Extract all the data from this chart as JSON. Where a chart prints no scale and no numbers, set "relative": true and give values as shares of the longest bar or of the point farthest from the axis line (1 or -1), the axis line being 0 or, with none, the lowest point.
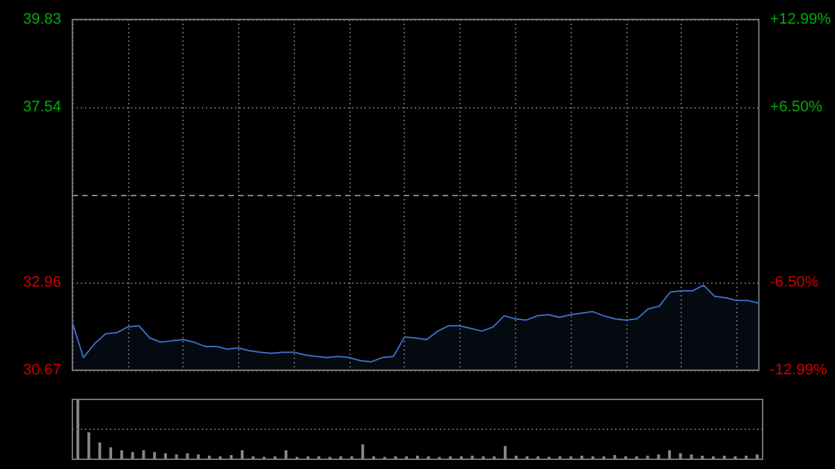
{
  "chart_data": [
    {
      "type": "area",
      "categories": [
        null,
        null,
        null,
        null,
        null,
        null,
        null,
        null,
        null,
        null,
        null,
        null,
        null,
        null,
        null,
        null,
        null,
        null,
        null,
        null,
        null,
        null,
        null,
        null,
        null,
        null,
        null,
        null,
        null,
        null,
        null,
        null,
        null,
        null,
        null,
        null,
        null,
        null,
        null,
        null,
        null,
        null,
        null,
        null,
        null,
        null,
        null,
        null,
        null,
        null,
        null,
        null,
        null,
        null,
        null,
        null,
        null,
        null,
        null,
        null,
        null,
        null,
        null
      ],
      "series": [
        {
          "color": "#3d6fc9",
          "values": [
            31.91,
            31.0,
            31.36,
            31.62,
            31.65,
            31.8,
            31.83,
            31.51,
            31.4,
            31.44,
            31.47,
            31.4,
            31.29,
            31.29,
            31.22,
            31.25,
            31.18,
            31.14,
            31.11,
            31.14,
            31.14,
            31.07,
            31.03,
            31.0,
            31.03,
            31.0,
            30.92,
            30.89,
            31.0,
            31.03,
            31.54,
            31.51,
            31.47,
            31.69,
            31.83,
            31.83,
            31.76,
            31.69,
            31.8,
            32.09,
            32.01,
            31.98,
            32.09,
            32.12,
            32.05,
            32.12,
            32.16,
            32.2,
            32.09,
            32.01,
            31.98,
            32.01,
            32.27,
            32.34,
            32.71,
            32.74,
            32.74,
            32.89,
            32.6,
            32.56,
            32.49,
            32.49,
            32.42
          ]
        }
      ],
      "ylim": [
        30.67,
        39.83
      ],
      "yticks": [
        30.67,
        32.96,
        37.54,
        39.83
      ],
      "y2lim": [
        -12.99,
        12.99
      ],
      "y2ticks": [
        {
          "value": -12.99,
          "label": "-12.99%"
        },
        {
          "value": -6.5,
          "label": "-6.50%"
        },
        {
          "value": 6.5,
          "label": "+6.50%"
        },
        {
          "value": 12.99,
          "label": "+12.99%"
        }
      ],
      "ref_lines": [
        {
          "axis": "y",
          "value": 35.25,
          "label": null,
          "line_style": "dashed"
        }
      ],
      "grid": true,
      "tick_labels": "y"
    },
    {
      "type": "bar",
      "relative": true,
      "categories": [
        null,
        null,
        null,
        null,
        null,
        null,
        null,
        null,
        null,
        null,
        null,
        null,
        null,
        null,
        null,
        null,
        null,
        null,
        null,
        null,
        null,
        null,
        null,
        null,
        null,
        null,
        null,
        null,
        null,
        null,
        null,
        null,
        null,
        null,
        null,
        null,
        null,
        null,
        null,
        null,
        null,
        null,
        null,
        null,
        null,
        null,
        null,
        null,
        null,
        null,
        null,
        null,
        null,
        null,
        null,
        null,
        null,
        null,
        null,
        null,
        null,
        null,
        null
      ],
      "series": [
        {
          "color": "#888888",
          "values": [
            1.0,
            0.45,
            0.28,
            0.2,
            0.15,
            0.12,
            0.15,
            0.12,
            0.1,
            0.08,
            0.1,
            0.08,
            0.06,
            0.05,
            0.07,
            0.15,
            0.05,
            0.04,
            0.05,
            0.15,
            0.04,
            0.05,
            0.05,
            0.04,
            0.05,
            0.05,
            0.25,
            0.05,
            0.04,
            0.05,
            0.05,
            0.06,
            0.05,
            0.04,
            0.05,
            0.05,
            0.06,
            0.05,
            0.05,
            0.22,
            0.06,
            0.05,
            0.05,
            0.04,
            0.05,
            0.05,
            0.06,
            0.05,
            0.05,
            0.07,
            0.05,
            0.05,
            0.06,
            0.08,
            0.15,
            0.1,
            0.08,
            0.06,
            0.05,
            0.06,
            0.05,
            0.06,
            0.08
          ]
        }
      ],
      "ref_lines": [
        {
          "axis": "y",
          "value": 0.5,
          "label": null,
          "line_style": "dotted",
          "color": "#666666"
        }
      ],
      "tick_labels": false
    }
  ]
}
